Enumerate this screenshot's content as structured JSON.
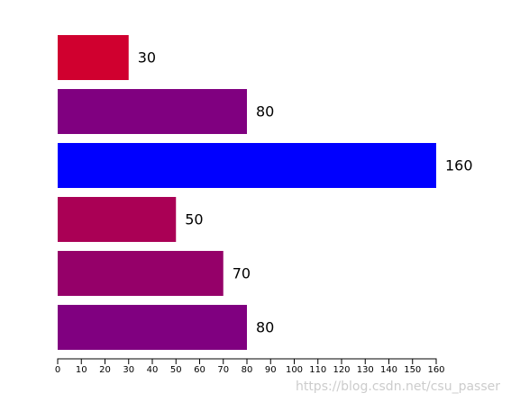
{
  "chart_data": {
    "type": "bar",
    "orientation": "horizontal",
    "values": [
      30,
      80,
      160,
      50,
      70,
      80
    ],
    "colors": [
      "#d0002f",
      "#800080",
      "#0000ff",
      "#aa0055",
      "#950069",
      "#800080"
    ],
    "xlim": [
      0,
      160
    ],
    "xticks": [
      0,
      10,
      20,
      30,
      40,
      50,
      60,
      70,
      80,
      90,
      100,
      110,
      120,
      130,
      140,
      150,
      160
    ],
    "watermark": "https://blog.csdn.net/csu_passer"
  }
}
